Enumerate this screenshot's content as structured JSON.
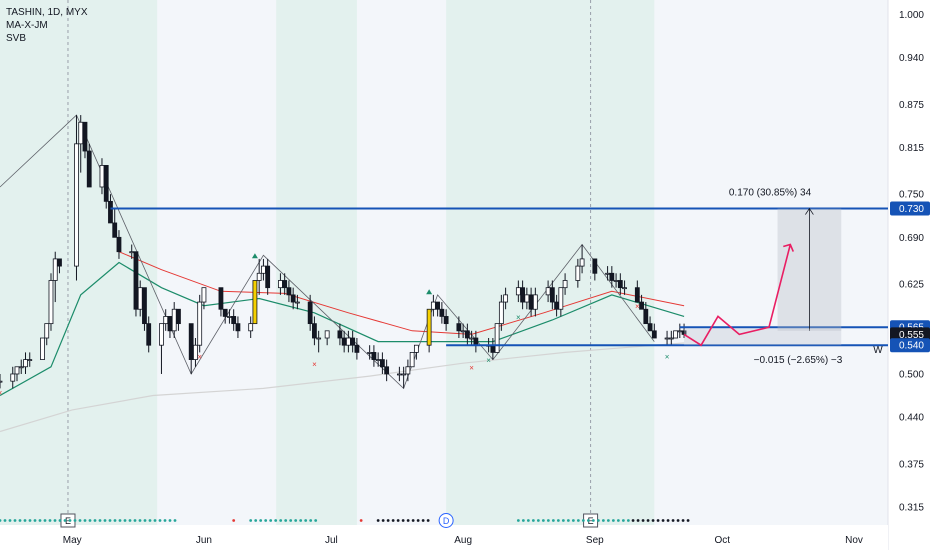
{
  "header": {
    "symbol_line": "TASHIN, 1D, MYX",
    "indicators": [
      "MA-X-JM",
      "SVB"
    ]
  },
  "colors": {
    "up": "#ffffff",
    "down": "#131722",
    "highlight": "#f5d000",
    "ema_fast": "#1c8c6a",
    "ema_slow": "#e53935",
    "long_ma": "#d4d4d4",
    "level_line": "#1553b6",
    "arrow": "#e91e63",
    "band": "#e3f1ee"
  },
  "chart_data": {
    "type": "candlestick",
    "x_ticks": [
      "May",
      "Jun",
      "Jul",
      "Aug",
      "Sep",
      "Oct",
      "Nov"
    ],
    "y_ticks": [
      "1.000",
      "0.940",
      "0.875",
      "0.815",
      "0.750",
      "0.690",
      "0.625",
      "0.565",
      "0.500",
      "0.440",
      "0.375",
      "0.315"
    ],
    "ylim": [
      0.29,
      1.02
    ],
    "price_labels": [
      {
        "text": "0.730",
        "value": 0.73,
        "kind": "line"
      },
      {
        "text": "0.565",
        "value": 0.565,
        "kind": "line"
      },
      {
        "text": "0.555",
        "value": 0.555,
        "kind": "last"
      },
      {
        "text": "0.540",
        "value": 0.54,
        "kind": "line"
      }
    ],
    "horizontal_levels": [
      0.73,
      0.565,
      0.54
    ],
    "annotations": {
      "upper": "0.170 (30.85%) 34",
      "lower": "−0.015 (−2.65%) −3",
      "side": "W"
    },
    "event_markers": [
      {
        "label": "E",
        "date": "2023-04-30"
      },
      {
        "label": "D",
        "date": "2023-07-28"
      },
      {
        "label": "E",
        "date": "2023-08-31"
      }
    ],
    "candles": [
      [
        "2023-04-14",
        0.49,
        0.5,
        0.48,
        0.49
      ],
      [
        "2023-04-17",
        0.49,
        0.51,
        0.48,
        0.5
      ],
      [
        "2023-04-18",
        0.5,
        0.51,
        0.49,
        0.51
      ],
      [
        "2023-04-19",
        0.51,
        0.52,
        0.5,
        0.51
      ],
      [
        "2023-04-20",
        0.51,
        0.53,
        0.5,
        0.52
      ],
      [
        "2023-04-21",
        0.52,
        0.53,
        0.51,
        0.52
      ],
      [
        "2023-04-24",
        0.52,
        0.55,
        0.52,
        0.55
      ],
      [
        "2023-04-25",
        0.55,
        0.57,
        0.54,
        0.57
      ],
      [
        "2023-04-26",
        0.57,
        0.64,
        0.56,
        0.63
      ],
      [
        "2023-04-27",
        0.63,
        0.67,
        0.6,
        0.66
      ],
      [
        "2023-04-28",
        0.66,
        0.66,
        0.64,
        0.65
      ],
      [
        "2023-05-02",
        0.65,
        0.86,
        0.63,
        0.82
      ],
      [
        "2023-05-03",
        0.82,
        0.86,
        0.78,
        0.85
      ],
      [
        "2023-05-04",
        0.85,
        0.85,
        0.8,
        0.81
      ],
      [
        "2023-05-05",
        0.81,
        0.82,
        0.76,
        0.76
      ],
      [
        "2023-05-08",
        0.76,
        0.8,
        0.75,
        0.79
      ],
      [
        "2023-05-09",
        0.79,
        0.79,
        0.73,
        0.74
      ],
      [
        "2023-05-10",
        0.74,
        0.75,
        0.71,
        0.71
      ],
      [
        "2023-05-11",
        0.71,
        0.73,
        0.69,
        0.69
      ],
      [
        "2023-05-12",
        0.69,
        0.7,
        0.66,
        0.67
      ],
      [
        "2023-05-15",
        0.67,
        0.68,
        0.66,
        0.67
      ],
      [
        "2023-05-16",
        0.67,
        0.67,
        0.58,
        0.59
      ],
      [
        "2023-05-17",
        0.59,
        0.63,
        0.58,
        0.62
      ],
      [
        "2023-05-18",
        0.62,
        0.62,
        0.56,
        0.57
      ],
      [
        "2023-05-19",
        0.57,
        0.58,
        0.53,
        0.54
      ],
      [
        "2023-05-22",
        0.54,
        0.57,
        0.5,
        0.57
      ],
      [
        "2023-05-23",
        0.57,
        0.59,
        0.56,
        0.58
      ],
      [
        "2023-05-24",
        0.58,
        0.58,
        0.55,
        0.56
      ],
      [
        "2023-05-25",
        0.56,
        0.6,
        0.55,
        0.59
      ],
      [
        "2023-05-26",
        0.59,
        0.59,
        0.56,
        0.57
      ],
      [
        "2023-05-29",
        0.57,
        0.57,
        0.5,
        0.52
      ],
      [
        "2023-05-30",
        0.52,
        0.55,
        0.51,
        0.54
      ],
      [
        "2023-05-31",
        0.54,
        0.61,
        0.53,
        0.6
      ],
      [
        "2023-06-01",
        0.6,
        0.62,
        0.59,
        0.62
      ],
      [
        "2023-06-05",
        0.62,
        0.62,
        0.58,
        0.59
      ],
      [
        "2023-06-06",
        0.59,
        0.59,
        0.57,
        0.58
      ],
      [
        "2023-06-07",
        0.58,
        0.59,
        0.57,
        0.58
      ],
      [
        "2023-06-08",
        0.58,
        0.59,
        0.56,
        0.57
      ],
      [
        "2023-06-09",
        0.57,
        0.58,
        0.55,
        0.56
      ],
      [
        "2023-06-12",
        0.56,
        0.58,
        0.55,
        0.57
      ],
      [
        "2023-06-13",
        0.57,
        0.63,
        0.57,
        0.63
      ],
      [
        "2023-06-14",
        0.63,
        0.66,
        0.61,
        0.64
      ],
      [
        "2023-06-15",
        0.64,
        0.66,
        0.63,
        0.65
      ],
      [
        "2023-06-16",
        0.65,
        0.66,
        0.61,
        0.62
      ],
      [
        "2023-06-19",
        0.62,
        0.64,
        0.61,
        0.63
      ],
      [
        "2023-06-20",
        0.63,
        0.64,
        0.61,
        0.62
      ],
      [
        "2023-06-21",
        0.62,
        0.63,
        0.6,
        0.61
      ],
      [
        "2023-06-22",
        0.61,
        0.62,
        0.59,
        0.6
      ],
      [
        "2023-06-23",
        0.6,
        0.61,
        0.59,
        0.6
      ],
      [
        "2023-06-26",
        0.6,
        0.61,
        0.56,
        0.57
      ],
      [
        "2023-06-27",
        0.57,
        0.58,
        0.54,
        0.55
      ],
      [
        "2023-06-28",
        0.55,
        0.56,
        0.53,
        0.55
      ],
      [
        "2023-06-30",
        0.55,
        0.56,
        0.54,
        0.56
      ],
      [
        "2023-07-03",
        0.56,
        0.57,
        0.54,
        0.55
      ],
      [
        "2023-07-04",
        0.55,
        0.56,
        0.53,
        0.54
      ],
      [
        "2023-07-05",
        0.54,
        0.56,
        0.53,
        0.55
      ],
      [
        "2023-07-06",
        0.55,
        0.56,
        0.53,
        0.54
      ],
      [
        "2023-07-07",
        0.54,
        0.55,
        0.52,
        0.53
      ],
      [
        "2023-07-10",
        0.53,
        0.54,
        0.52,
        0.53
      ],
      [
        "2023-07-11",
        0.53,
        0.54,
        0.51,
        0.52
      ],
      [
        "2023-07-12",
        0.52,
        0.53,
        0.51,
        0.52
      ],
      [
        "2023-07-13",
        0.52,
        0.53,
        0.5,
        0.51
      ],
      [
        "2023-07-14",
        0.51,
        0.52,
        0.49,
        0.5
      ],
      [
        "2023-07-17",
        0.5,
        0.51,
        0.49,
        0.5
      ],
      [
        "2023-07-18",
        0.5,
        0.51,
        0.48,
        0.5
      ],
      [
        "2023-07-19",
        0.5,
        0.52,
        0.49,
        0.51
      ],
      [
        "2023-07-20",
        0.51,
        0.53,
        0.51,
        0.53
      ],
      [
        "2023-07-21",
        0.53,
        0.54,
        0.52,
        0.54
      ],
      [
        "2023-07-24",
        0.54,
        0.59,
        0.53,
        0.59
      ],
      [
        "2023-07-25",
        0.59,
        0.61,
        0.58,
        0.6
      ],
      [
        "2023-07-26",
        0.6,
        0.6,
        0.58,
        0.59
      ],
      [
        "2023-07-27",
        0.59,
        0.6,
        0.57,
        0.58
      ],
      [
        "2023-07-28",
        0.58,
        0.59,
        0.56,
        0.57
      ],
      [
        "2023-07-31",
        0.57,
        0.58,
        0.55,
        0.56
      ],
      [
        "2023-08-01",
        0.56,
        0.57,
        0.55,
        0.56
      ],
      [
        "2023-08-02",
        0.56,
        0.57,
        0.54,
        0.55
      ],
      [
        "2023-08-03",
        0.55,
        0.56,
        0.54,
        0.55
      ],
      [
        "2023-08-04",
        0.55,
        0.56,
        0.53,
        0.54
      ],
      [
        "2023-08-07",
        0.54,
        0.55,
        0.53,
        0.54
      ],
      [
        "2023-08-08",
        0.54,
        0.55,
        0.52,
        0.53
      ],
      [
        "2023-08-09",
        0.53,
        0.57,
        0.53,
        0.57
      ],
      [
        "2023-08-10",
        0.57,
        0.61,
        0.56,
        0.6
      ],
      [
        "2023-08-11",
        0.6,
        0.62,
        0.59,
        0.61
      ],
      [
        "2023-08-14",
        0.61,
        0.63,
        0.6,
        0.62
      ],
      [
        "2023-08-15",
        0.62,
        0.63,
        0.59,
        0.6
      ],
      [
        "2023-08-16",
        0.6,
        0.62,
        0.59,
        0.61
      ],
      [
        "2023-08-17",
        0.61,
        0.62,
        0.58,
        0.59
      ],
      [
        "2023-08-18",
        0.59,
        0.62,
        0.58,
        0.61
      ],
      [
        "2023-08-21",
        0.61,
        0.63,
        0.6,
        0.62
      ],
      [
        "2023-08-22",
        0.62,
        0.63,
        0.59,
        0.6
      ],
      [
        "2023-08-23",
        0.6,
        0.61,
        0.58,
        0.59
      ],
      [
        "2023-08-24",
        0.59,
        0.62,
        0.58,
        0.62
      ],
      [
        "2023-08-25",
        0.62,
        0.64,
        0.61,
        0.63
      ],
      [
        "2023-08-28",
        0.63,
        0.66,
        0.62,
        0.65
      ],
      [
        "2023-08-29",
        0.65,
        0.68,
        0.64,
        0.66
      ],
      [
        "2023-09-01",
        0.66,
        0.66,
        0.63,
        0.64
      ],
      [
        "2023-09-04",
        0.64,
        0.65,
        0.63,
        0.64
      ],
      [
        "2023-09-05",
        0.64,
        0.65,
        0.62,
        0.63
      ],
      [
        "2023-09-06",
        0.63,
        0.64,
        0.62,
        0.63
      ],
      [
        "2023-09-07",
        0.63,
        0.64,
        0.61,
        0.62
      ],
      [
        "2023-09-08",
        0.62,
        0.63,
        0.61,
        0.62
      ],
      [
        "2023-09-11",
        0.62,
        0.63,
        0.6,
        0.6
      ],
      [
        "2023-09-12",
        0.6,
        0.61,
        0.59,
        0.59
      ],
      [
        "2023-09-13",
        0.59,
        0.6,
        0.57,
        0.57
      ],
      [
        "2023-09-14",
        0.57,
        0.58,
        0.56,
        0.56
      ],
      [
        "2023-09-15",
        0.56,
        0.57,
        0.55,
        0.55
      ],
      [
        "2023-09-18",
        0.55,
        0.56,
        0.54,
        0.55
      ],
      [
        "2023-09-19",
        0.55,
        0.56,
        0.54,
        0.55
      ],
      [
        "2023-09-20",
        0.55,
        0.56,
        0.55,
        0.56
      ],
      [
        "2023-09-21",
        0.56,
        0.57,
        0.55,
        0.56
      ],
      [
        "2023-09-22",
        0.56,
        0.57,
        0.55,
        0.555
      ]
    ]
  }
}
